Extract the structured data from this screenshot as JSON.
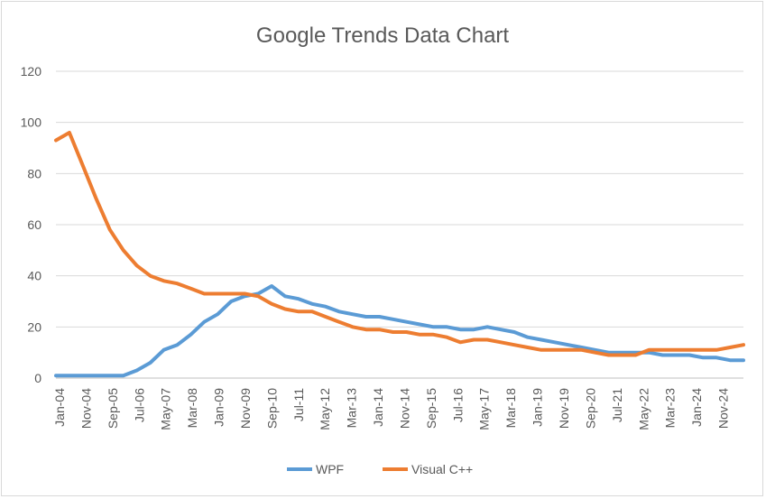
{
  "chart_data": {
    "type": "line",
    "title": "Google Trends Data Chart",
    "xlabel": "",
    "ylabel": "",
    "ylim": [
      0,
      120
    ],
    "yticks": [
      0,
      20,
      40,
      60,
      80,
      100,
      120
    ],
    "x_tick_labels": [
      "Jan-04",
      "Nov-04",
      "Sep-05",
      "Jul-06",
      "May-07",
      "Mar-08",
      "Jan-09",
      "Nov-09",
      "Sep-10",
      "Jul-11",
      "May-12",
      "Mar-13",
      "Jan-14",
      "Nov-14",
      "Sep-15",
      "Jul-16",
      "May-17",
      "Mar-18",
      "Jan-19",
      "Nov-19",
      "Sep-20",
      "Jul-21",
      "May-22",
      "Mar-23",
      "Jan-24",
      "Nov-24"
    ],
    "grid": true,
    "legend_position": "bottom",
    "x": [
      "Jan-04",
      "Jun-04",
      "Nov-04",
      "Apr-05",
      "Sep-05",
      "Feb-06",
      "Jul-06",
      "Dec-06",
      "May-07",
      "Oct-07",
      "Mar-08",
      "Aug-08",
      "Jan-09",
      "Jun-09",
      "Nov-09",
      "Apr-10",
      "Sep-10",
      "Feb-11",
      "Jul-11",
      "Dec-11",
      "May-12",
      "Oct-12",
      "Mar-13",
      "Aug-13",
      "Jan-14",
      "Jun-14",
      "Nov-14",
      "Apr-15",
      "Sep-15",
      "Feb-16",
      "Jul-16",
      "Dec-16",
      "May-17",
      "Oct-17",
      "Mar-18",
      "Aug-18",
      "Jan-19",
      "Jun-19",
      "Nov-19",
      "Apr-20",
      "Sep-20",
      "Feb-21",
      "Jul-21",
      "Dec-21",
      "May-22",
      "Oct-22",
      "Mar-23",
      "Aug-23",
      "Jan-24",
      "Jun-24",
      "Nov-24",
      "Feb-25"
    ],
    "series": [
      {
        "name": "WPF",
        "color": "#5b9bd5",
        "values": [
          1,
          1,
          1,
          1,
          1,
          1,
          3,
          6,
          11,
          13,
          17,
          22,
          25,
          30,
          32,
          33,
          36,
          32,
          31,
          29,
          28,
          26,
          25,
          24,
          24,
          23,
          22,
          21,
          20,
          20,
          19,
          19,
          20,
          19,
          18,
          16,
          15,
          14,
          13,
          12,
          11,
          10,
          10,
          10,
          10,
          9,
          9,
          9,
          8,
          8,
          7,
          7
        ]
      },
      {
        "name": "Visual C++",
        "color": "#ed7d31",
        "values": [
          93,
          96,
          83,
          70,
          58,
          50,
          44,
          40,
          38,
          37,
          35,
          33,
          33,
          33,
          33,
          32,
          29,
          27,
          26,
          26,
          24,
          22,
          20,
          19,
          19,
          18,
          18,
          17,
          17,
          16,
          14,
          15,
          15,
          14,
          13,
          12,
          11,
          11,
          11,
          11,
          10,
          9,
          9,
          9,
          11,
          11,
          11,
          11,
          11,
          11,
          12,
          13
        ]
      }
    ]
  }
}
